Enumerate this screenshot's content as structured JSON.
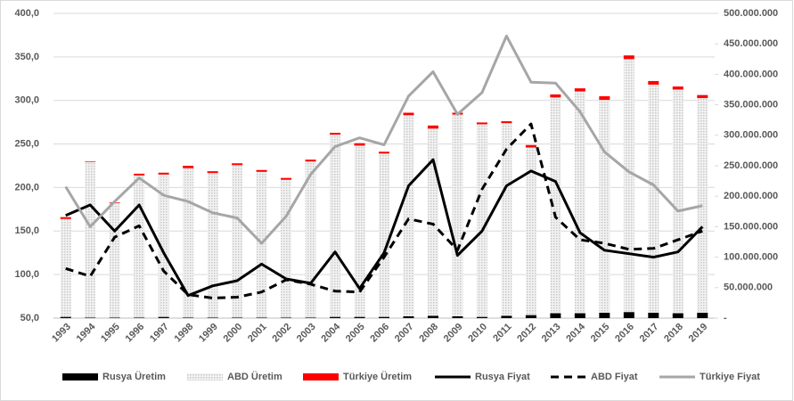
{
  "chart_data": {
    "type": "combo",
    "categories": [
      "1993",
      "1994",
      "1995",
      "1996",
      "1997",
      "1998",
      "1999",
      "2000",
      "2001",
      "2002",
      "2003",
      "2004",
      "2005",
      "2006",
      "2007",
      "2008",
      "2009",
      "2010",
      "2011",
      "2012",
      "2013",
      "2014",
      "2015",
      "2016",
      "2017",
      "2018",
      "2019"
    ],
    "ylim": [
      50,
      400
    ],
    "yticks": [
      {
        "value": 50,
        "label": "50,0"
      },
      {
        "value": 100,
        "label": "100,0"
      },
      {
        "value": 150,
        "label": "150,0"
      },
      {
        "value": 200,
        "label": "200,0"
      },
      {
        "value": 250,
        "label": "250,0"
      },
      {
        "value": 300,
        "label": "300,0"
      },
      {
        "value": 350,
        "label": "350,0"
      },
      {
        "value": 400,
        "label": "400,0"
      }
    ],
    "y2lim": [
      0,
      500000000
    ],
    "y2ticks": [
      {
        "value": 0,
        "label": "-"
      },
      {
        "value": 50000000,
        "label": "50.000.000"
      },
      {
        "value": 100000000,
        "label": "100.000.000"
      },
      {
        "value": 150000000,
        "label": "150.000.000"
      },
      {
        "value": 200000000,
        "label": "200.000.000"
      },
      {
        "value": 250000000,
        "label": "250.000.000"
      },
      {
        "value": 300000000,
        "label": "300.000.000"
      },
      {
        "value": 350000000,
        "label": "350.000.000"
      },
      {
        "value": 400000000,
        "label": "400.000.000"
      },
      {
        "value": 450000000,
        "label": "450.000.000"
      },
      {
        "value": 500000000,
        "label": "500.000.000"
      }
    ],
    "legend": "bottom",
    "series": [
      {
        "name": "Rusya Üretim",
        "kind": "bar",
        "axis": "y2",
        "color": "#000000",
        "values": [
          2000000,
          1000000,
          1000000,
          1000000,
          2000000,
          1000000,
          1000000,
          1000000,
          1000000,
          1000000,
          1000000,
          2000000,
          2000000,
          2000000,
          3000000,
          4000000,
          3000000,
          2000000,
          4000000,
          5000000,
          8000000,
          8000000,
          9000000,
          10000000,
          9000000,
          8000000,
          9000000
        ]
      },
      {
        "name": "ABD Üretim",
        "kind": "bar",
        "axis": "y2",
        "color": "#d9d9d9",
        "values": [
          160700000,
          255000000,
          188000000,
          233000000,
          233600000,
          245000000,
          237000000,
          250000000,
          239000000,
          226000000,
          256000000,
          299000000,
          281000000,
          268000000,
          330000000,
          307000000,
          331000000,
          316000000,
          316000000,
          275000000,
          354000000,
          364000000,
          349000000,
          415000000,
          374000000,
          367000000,
          352000000
        ]
      },
      {
        "name": "Türkiye Üretim",
        "kind": "bar",
        "axis": "y2",
        "color": "#ff0000",
        "values": [
          3000000,
          1000000,
          1000000,
          3000000,
          3000000,
          4000000,
          3000000,
          3000000,
          3000000,
          3000000,
          3000000,
          3000000,
          4000000,
          3000000,
          4000000,
          5000000,
          3000000,
          3000000,
          3000000,
          4000000,
          5000000,
          5000000,
          6000000,
          6000000,
          6000000,
          5000000,
          5000000
        ]
      },
      {
        "name": "Rusya Fiyat",
        "kind": "line",
        "color": "#000000",
        "style": "solid",
        "values": [
          168,
          180,
          150,
          180,
          125,
          76,
          87,
          93,
          112,
          95,
          90,
          126,
          84,
          125,
          202,
          232,
          122,
          150,
          202,
          219,
          207,
          148,
          128,
          124,
          120,
          126,
          155
        ]
      },
      {
        "name": "ABD Fiyat",
        "kind": "line",
        "color": "#000000",
        "style": "dashed",
        "values": [
          107,
          98,
          143,
          156,
          104,
          77,
          73,
          74,
          80,
          94,
          89,
          81,
          80,
          120,
          164,
          158,
          128,
          198,
          244,
          273,
          166,
          140,
          136,
          129,
          130,
          140,
          150
        ]
      },
      {
        "name": "Türkiye Fiyat",
        "kind": "line",
        "color": "#a6a6a6",
        "style": "solid",
        "values": [
          201,
          155,
          184,
          211,
          191,
          184,
          171,
          165,
          136,
          167,
          215,
          247,
          257,
          249,
          305,
          333,
          284,
          309,
          374,
          321,
          320,
          287,
          241,
          218,
          203,
          173,
          179
        ]
      }
    ]
  }
}
